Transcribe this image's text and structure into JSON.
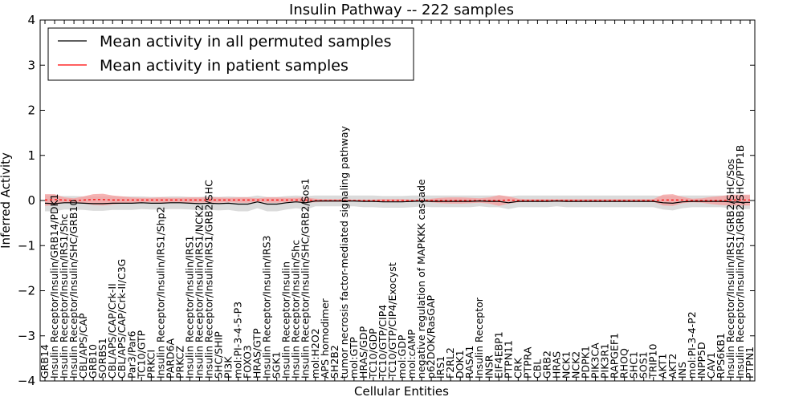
{
  "chart_data": {
    "type": "line",
    "title": "Insulin Pathway -- 222 samples",
    "xlabel": "Cellular Entities",
    "ylabel": "Inferred Activity",
    "ylim": [
      -4,
      4
    ],
    "yticks": [
      -4,
      -3,
      -2,
      -1,
      0,
      1,
      2,
      3,
      4
    ],
    "legend_position": "top-left",
    "colors": {
      "permuted": "#000000",
      "patient": "#ff0000",
      "patient_band": "#f4a0a0",
      "permuted_band": "#cccccc"
    },
    "categories": [
      "GRB14",
      "Insulin Receptor/Insulin/GRB14/PDK1",
      "Insulin Receptor/Insulin/IRS1/Shc",
      "Insulin Receptor/Insulin/SHC/GRB10",
      "CBL/APS/CAP",
      "GRB10",
      "SORBS1",
      "CBL/APS/CAP/Crk-II",
      "CBL/APS/CAP/Crk-II/C3G",
      "Par3/Par6",
      "TC10/GTP",
      "PRKCI",
      "Insulin Receptor/Insulin/IRS1/Shp2",
      "PARD6A",
      "PRKCZ",
      "Insulin Receptor/Insulin/IRS1",
      "Insulin Receptor/Insulin/IRS1/NCK2",
      "Insulin Receptor/Insulin/IRS1/GRB2/SHC",
      "SHC/SHIP",
      "PI3K",
      "mol:PI-3-4-5-P3",
      "FOXO3",
      "HRAS/GTP",
      "Insulin Receptor/Insulin/IRS3",
      "SGK1",
      "Insulin Receptor/Insulin",
      "Insulin Receptor/Insulin/Shc",
      "Insulin Receptor/Insulin/SHC/GRB2/Sos1",
      "mol:H2O2",
      "APS homodimer",
      "SH2B2",
      "tumor necrosis factor-mediated signaling pathway",
      "mol:GTP",
      "HRAS/GDP",
      "TC10/GDP",
      "TC10/GTP/CIP4",
      "TC10/GTP/CIP4/Exocyst",
      "mol:GDP",
      "mol:cAMP",
      "negative regulation of MAPKKK cascade",
      "p62DOK/RasGAP",
      "IRS1",
      "F2RL2",
      "DOK1",
      "RASA1",
      "Insulin Receptor",
      "INSR",
      "EIF4EBP1",
      "PTPN11",
      "CRK",
      "PTPRA",
      "CBL",
      "GRB2",
      "HRAS",
      "NCK1",
      "NCK2",
      "PDPK1",
      "PIK3CA",
      "PIK3R1",
      "RAPGEF1",
      "RHOQ",
      "SHC1",
      "SOS1",
      "TRIP10",
      "AKT1",
      "AKT2",
      "INS",
      "mol:PI-3-4-P2",
      "INPP5D",
      "CAV1",
      "RPS6KB1",
      "Insulin Receptor/Insulin/IRS1/GRB2/SHC/Sos",
      "Insulin Receptor/Insulin/IRS1/GRB2/SHC/PTP1B",
      "PTPN1"
    ],
    "series": [
      {
        "name": "Mean activity in all permuted samples",
        "color": "#000000",
        "values": [
          -0.06,
          -0.07,
          -0.05,
          -0.05,
          -0.06,
          -0.07,
          -0.07,
          -0.06,
          -0.06,
          -0.06,
          -0.05,
          -0.06,
          -0.06,
          -0.05,
          -0.05,
          -0.06,
          -0.07,
          -0.06,
          -0.07,
          -0.06,
          -0.08,
          -0.08,
          -0.03,
          -0.08,
          -0.08,
          -0.05,
          -0.03,
          -0.05,
          -0.01,
          -0.01,
          -0.01,
          -0.01,
          -0.01,
          -0.02,
          -0.02,
          -0.03,
          -0.03,
          -0.03,
          -0.02,
          -0.01,
          -0.02,
          -0.02,
          -0.02,
          -0.02,
          -0.02,
          -0.01,
          -0.02,
          -0.02,
          -0.05,
          -0.02,
          -0.02,
          -0.02,
          -0.02,
          -0.01,
          -0.02,
          -0.02,
          -0.02,
          -0.02,
          -0.02,
          -0.02,
          -0.02,
          -0.02,
          -0.02,
          -0.02,
          -0.05,
          -0.06,
          -0.03,
          -0.02,
          -0.02,
          -0.02,
          -0.02,
          -0.03,
          -0.04,
          -0.04
        ]
      },
      {
        "name": "Mean activity in patient samples",
        "color": "#ff0000",
        "values": [
          0.01,
          0.02,
          0.01,
          0.0,
          0.01,
          0.02,
          0.02,
          0.01,
          0.01,
          0.01,
          0.01,
          0.01,
          0.01,
          0.01,
          0.01,
          0.01,
          0.01,
          0.01,
          0.01,
          0.01,
          0.01,
          0.01,
          0.01,
          0.01,
          0.01,
          0.01,
          0.01,
          0.01,
          0.0,
          0.0,
          0.0,
          0.0,
          0.0,
          0.0,
          0.0,
          0.0,
          0.0,
          0.0,
          0.0,
          0.0,
          0.0,
          0.0,
          0.0,
          0.0,
          0.0,
          0.0,
          0.0,
          0.0,
          0.01,
          0.0,
          0.0,
          0.0,
          0.0,
          0.0,
          0.0,
          0.0,
          0.0,
          0.0,
          0.0,
          0.0,
          0.0,
          0.0,
          0.0,
          0.0,
          0.01,
          0.01,
          0.01,
          0.0,
          0.0,
          0.0,
          0.0,
          0.01,
          0.01,
          0.01
        ]
      }
    ],
    "patient_band_halfwidth": [
      0.13,
      0.12,
      0.06,
      0.05,
      0.08,
      0.12,
      0.13,
      0.1,
      0.08,
      0.06,
      0.05,
      0.05,
      0.06,
      0.05,
      0.05,
      0.06,
      0.06,
      0.06,
      0.06,
      0.05,
      0.06,
      0.06,
      0.04,
      0.06,
      0.06,
      0.05,
      0.05,
      0.06,
      0.04,
      0.03,
      0.03,
      0.03,
      0.02,
      0.02,
      0.02,
      0.03,
      0.03,
      0.03,
      0.02,
      0.02,
      0.04,
      0.06,
      0.07,
      0.07,
      0.06,
      0.05,
      0.07,
      0.12,
      0.08,
      0.04,
      0.03,
      0.03,
      0.03,
      0.03,
      0.03,
      0.03,
      0.03,
      0.03,
      0.03,
      0.03,
      0.03,
      0.03,
      0.03,
      0.03,
      0.12,
      0.13,
      0.07,
      0.04,
      0.05,
      0.08,
      0.1,
      0.12,
      0.12,
      0.12
    ],
    "permuted_band_halfwidth": [
      0.18,
      0.17,
      0.15,
      0.15,
      0.15,
      0.16,
      0.16,
      0.15,
      0.15,
      0.15,
      0.14,
      0.14,
      0.14,
      0.14,
      0.14,
      0.14,
      0.15,
      0.15,
      0.15,
      0.15,
      0.16,
      0.16,
      0.14,
      0.16,
      0.16,
      0.15,
      0.14,
      0.15,
      0.12,
      0.12,
      0.12,
      0.12,
      0.12,
      0.13,
      0.13,
      0.13,
      0.13,
      0.13,
      0.13,
      0.12,
      0.13,
      0.13,
      0.13,
      0.13,
      0.13,
      0.12,
      0.13,
      0.13,
      0.14,
      0.13,
      0.13,
      0.13,
      0.13,
      0.12,
      0.13,
      0.13,
      0.13,
      0.13,
      0.13,
      0.13,
      0.13,
      0.13,
      0.13,
      0.13,
      0.15,
      0.16,
      0.14,
      0.13,
      0.13,
      0.13,
      0.13,
      0.14,
      0.15,
      0.15
    ]
  }
}
